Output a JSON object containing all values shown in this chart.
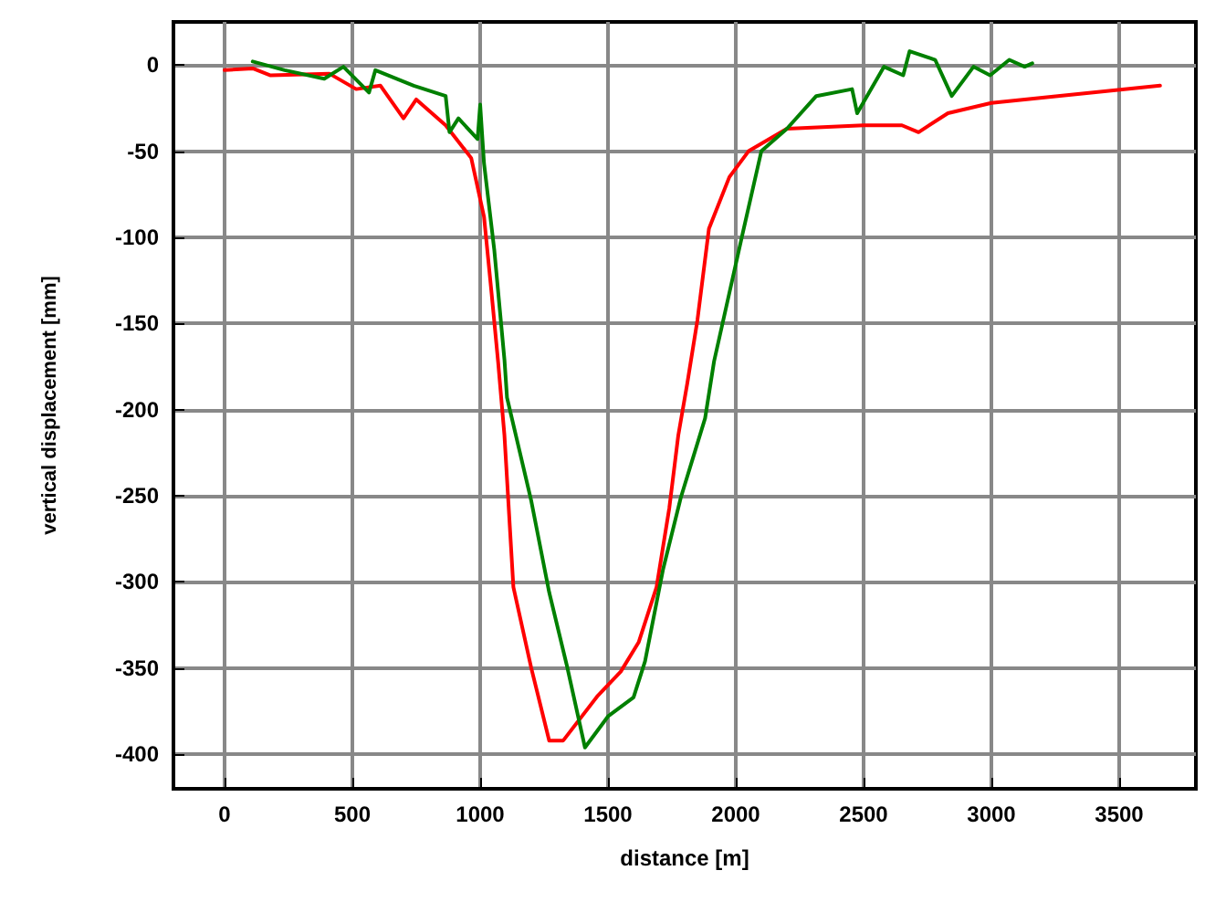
{
  "chart_data": {
    "type": "line",
    "xlabel": "distance [m]",
    "ylabel": "vertical displacement [mm]",
    "xlim": [
      -200,
      3800
    ],
    "xticks": [
      0,
      500,
      1000,
      1500,
      2000,
      2500,
      3000,
      3500
    ],
    "ylim": [
      -420,
      25
    ],
    "yticks": [
      0,
      -50,
      -100,
      -150,
      -200,
      -250,
      -300,
      -350,
      -400
    ],
    "grid": true,
    "marker": "none",
    "line_style": "solid",
    "series": [
      {
        "color": "#ff0000",
        "x": [
          0,
          110,
          180,
          410,
          515,
          610,
          700,
          750,
          865,
          965,
          1015,
          1045,
          1070,
          1095,
          1130,
          1200,
          1270,
          1325,
          1460,
          1550,
          1620,
          1690,
          1740,
          1775,
          1810,
          1850,
          1895,
          1975,
          2050,
          2200,
          2500,
          2650,
          2715,
          2830,
          3000,
          3260,
          3660
        ],
        "values": [
          -3,
          -2,
          -6,
          -5,
          -14,
          -12,
          -31,
          -20,
          -35,
          -54,
          -88,
          -133,
          -172,
          -215,
          -303,
          -350,
          -392,
          -392,
          -366,
          -352,
          -335,
          -303,
          -257,
          -215,
          -185,
          -148,
          -95,
          -65,
          -50,
          -37,
          -35,
          -35,
          -39,
          -28,
          -22,
          -18,
          -12
        ]
      },
      {
        "color": "#008000",
        "x": [
          110,
          235,
          390,
          465,
          565,
          590,
          740,
          865,
          880,
          915,
          990,
          1000,
          1015,
          1055,
          1095,
          1105,
          1200,
          1270,
          1340,
          1410,
          1500,
          1600,
          1645,
          1715,
          1785,
          1880,
          1915,
          2025,
          2100,
          2200,
          2315,
          2455,
          2475,
          2580,
          2655,
          2680,
          2780,
          2845,
          2930,
          2995,
          3070,
          3130,
          3160
        ],
        "values": [
          2,
          -3,
          -8,
          -1,
          -16,
          -3,
          -12,
          -18,
          -39,
          -31,
          -43,
          -23,
          -57,
          -107,
          -171,
          -193,
          -253,
          -306,
          -349,
          -396,
          -378,
          -367,
          -346,
          -293,
          -251,
          -205,
          -172,
          -99,
          -50,
          -37,
          -18,
          -14,
          -28,
          -1,
          -6,
          8,
          3,
          -18,
          -1,
          -6,
          3,
          -1,
          1
        ]
      }
    ]
  }
}
